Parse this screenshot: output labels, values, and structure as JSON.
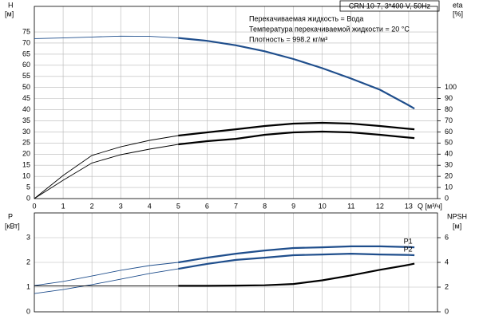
{
  "chart_data": [
    {
      "type": "line",
      "title": "CRN 10-7, 3*400 V, 50Hz",
      "annotations": [
        "Перекачиваемая жидкость = Вода",
        "Температура перекачиваемой жидкости = 20 °C",
        "Плотность = 998.2 кг/м³"
      ],
      "y_label": "H",
      "y_unit": "[м]",
      "y2_label": "eta",
      "y2_unit": "[%]",
      "x_label": "Q [м³/ч]",
      "x": [
        0,
        1,
        2,
        3,
        4,
        5,
        6,
        7,
        8,
        9,
        10,
        11,
        12,
        13,
        13.2
      ],
      "operating_range": [
        5,
        13.2
      ],
      "xlim": [
        0,
        14
      ],
      "xticks": [
        0,
        1,
        2,
        3,
        4,
        5,
        6,
        7,
        8,
        9,
        10,
        11,
        12,
        13
      ],
      "ylim": [
        0,
        86.5
      ],
      "yticks": [
        0,
        5,
        10,
        15,
        20,
        25,
        30,
        35,
        40,
        45,
        50,
        55,
        60,
        65,
        70,
        75
      ],
      "y2lim": [
        0,
        173
      ],
      "y2ticks": [
        0,
        10,
        20,
        30,
        40,
        50,
        60,
        70,
        80,
        90,
        100
      ],
      "grid": true,
      "series": [
        {
          "color": "#1f4e8c",
          "values": [
            72,
            72.3,
            72.7,
            73.1,
            73,
            72.3,
            71,
            69,
            66.3,
            62.8,
            58.7,
            54,
            49,
            42,
            40.5
          ]
        },
        {
          "color": "#000000",
          "axis": "y2",
          "values": [
            0,
            20.8,
            38.8,
            46.6,
            52.4,
            56.7,
            59.6,
            62.4,
            65.3,
            67.5,
            68.2,
            67.5,
            65.3,
            62.8,
            62.4
          ]
        },
        {
          "color": "#000000",
          "axis": "y2",
          "values": [
            0,
            16.5,
            32,
            39.5,
            44.5,
            48.8,
            51.7,
            53.8,
            57.4,
            59.6,
            60.3,
            59.6,
            57.4,
            54.9,
            54.5
          ]
        }
      ]
    },
    {
      "type": "line",
      "y_label": "P",
      "y_unit": "[кВт]",
      "y2_label": "NPSH",
      "y2_unit": "[м]",
      "x": [
        0,
        1,
        2,
        3,
        4,
        5,
        6,
        7,
        8,
        9,
        10,
        11,
        12,
        13,
        13.2
      ],
      "operating_range": [
        5,
        13.2
      ],
      "xlim": [
        0,
        14
      ],
      "xticks": [
        0,
        1,
        2,
        3,
        4,
        5,
        6,
        7,
        8,
        9,
        10,
        11,
        12,
        13
      ],
      "ylim": [
        0,
        4
      ],
      "yticks": [
        0,
        1,
        2,
        3
      ],
      "y2lim": [
        0,
        8
      ],
      "y2ticks": [
        0,
        2,
        4,
        6
      ],
      "grid": true,
      "series": [
        {
          "name": "P1",
          "color": "#1f4e8c",
          "values": [
            1.06,
            1.23,
            1.45,
            1.68,
            1.87,
            2.0,
            2.19,
            2.35,
            2.48,
            2.58,
            2.61,
            2.65,
            2.65,
            2.62,
            2.61
          ]
        },
        {
          "name": "P2",
          "color": "#1f4e8c",
          "values": [
            0.74,
            0.9,
            1.1,
            1.32,
            1.55,
            1.74,
            1.94,
            2.1,
            2.19,
            2.29,
            2.32,
            2.35,
            2.32,
            2.3,
            2.29
          ]
        },
        {
          "color": "#000000",
          "axis": "y2",
          "values": [
            2.1,
            2.1,
            2.1,
            2.1,
            2.1,
            2.1,
            2.1,
            2.12,
            2.15,
            2.25,
            2.55,
            2.95,
            3.4,
            3.8,
            3.9
          ]
        }
      ]
    }
  ]
}
